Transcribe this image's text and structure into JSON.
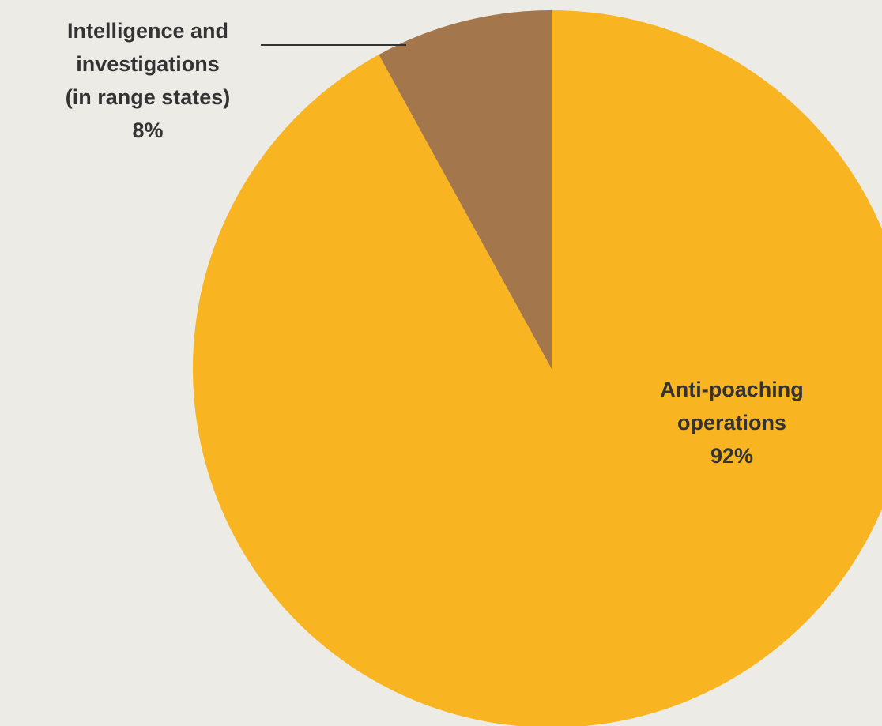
{
  "chart_data": {
    "type": "pie",
    "start_angle": "12 o'clock",
    "direction": "clockwise",
    "slices": [
      {
        "label_lines": [
          "Anti-poaching",
          "operations"
        ],
        "value": 92,
        "value_label": "92%",
        "color": "#f8b521"
      },
      {
        "label_lines": [
          "Intelligence and",
          "investigations",
          "(in range states)"
        ],
        "value": 8,
        "value_label": "8%",
        "color": "#a4764c"
      }
    ]
  }
}
